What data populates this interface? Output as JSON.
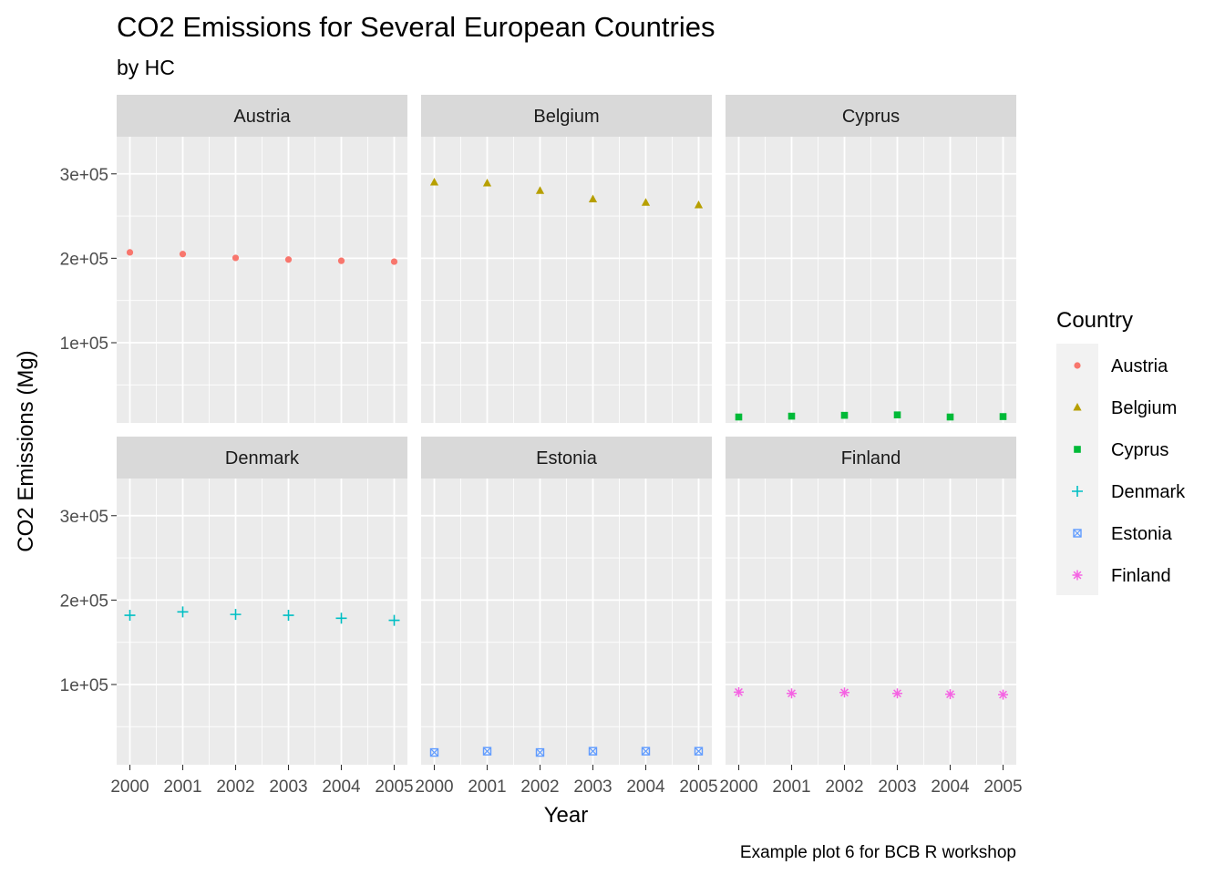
{
  "chart_data": {
    "type": "scatter",
    "title": "CO2 Emissions for Several European Countries",
    "subtitle": "by HC",
    "xlabel": "Year",
    "ylabel": "CO2 Emissions (Mg)",
    "caption": "Example plot 6 for BCB R workshop",
    "legend_title": "Country",
    "legend_position": "right",
    "grid": true,
    "facets": "wrap by Country, 2 rows x 3 columns, shared axes",
    "x": [
      2000,
      2001,
      2002,
      2003,
      2004,
      2005
    ],
    "x_tick_labels": [
      "2000",
      "2001",
      "2002",
      "2003",
      "2004",
      "2005"
    ],
    "y_ticks": [
      100000,
      200000,
      300000
    ],
    "y_tick_labels": [
      "1e+05",
      "2e+05",
      "3e+05"
    ],
    "ylim": [
      5000,
      344000
    ],
    "series": [
      {
        "name": "Austria",
        "color": "#F8766D",
        "shape": "circle",
        "values": [
          207000,
          205000,
          200500,
          198500,
          197000,
          196000
        ]
      },
      {
        "name": "Belgium",
        "color": "#B79F00",
        "shape": "triangle",
        "values": [
          290000,
          289000,
          280000,
          270000,
          266000,
          263000
        ]
      },
      {
        "name": "Cyprus",
        "color": "#00BA38",
        "shape": "square",
        "values": [
          12000,
          13000,
          14000,
          14500,
          12000,
          12500
        ]
      },
      {
        "name": "Denmark",
        "color": "#00BFC4",
        "shape": "plus",
        "values": [
          182000,
          186000,
          183000,
          182000,
          178500,
          176000
        ]
      },
      {
        "name": "Estonia",
        "color": "#619CFF",
        "shape": "square-cross",
        "values": [
          19500,
          21000,
          19500,
          21000,
          21000,
          21000
        ]
      },
      {
        "name": "Finland",
        "color": "#F564E3",
        "shape": "asterisk",
        "values": [
          91000,
          89500,
          90500,
          89500,
          88500,
          88000
        ]
      }
    ]
  }
}
